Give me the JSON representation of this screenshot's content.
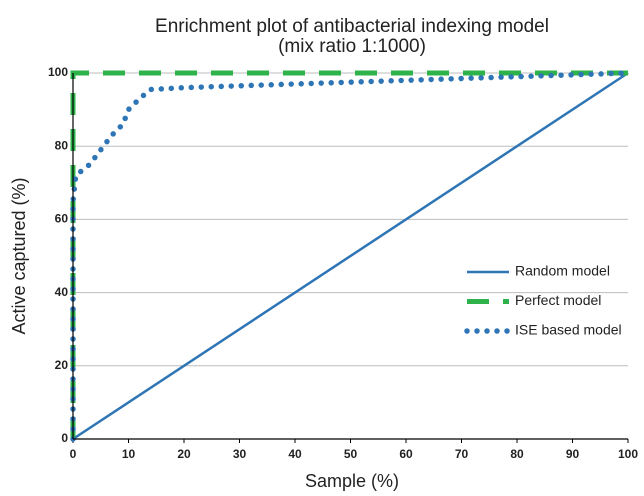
{
  "chart_data": {
    "type": "line",
    "title": [
      "Enrichment plot of antibacterial indexing model",
      "(mix ratio 1:1000)"
    ],
    "x_label": "Sample (%)",
    "y_label": "Active captured (%)",
    "xlim": [
      0,
      100
    ],
    "ylim": [
      0,
      100
    ],
    "xticks": [
      0,
      10,
      20,
      30,
      40,
      50,
      60,
      70,
      80,
      90,
      100
    ],
    "yticks": [
      0,
      20,
      40,
      60,
      80,
      100
    ],
    "grid": true,
    "legend": "right",
    "series": [
      {
        "name": "Random model",
        "color": "#2e75b6",
        "style": "solid",
        "x": [
          0,
          100
        ],
        "values": [
          0,
          100
        ]
      },
      {
        "name": "Perfect model",
        "color": "#2db34a",
        "style": "dashed",
        "x": [
          0,
          0,
          100
        ],
        "values": [
          0,
          100,
          100
        ]
      },
      {
        "name": "ISE based model",
        "color": "#2e75b6",
        "style": "dotted",
        "x": [
          0,
          0,
          0,
          0,
          0.5,
          3,
          5,
          7,
          9,
          10,
          12,
          14,
          20,
          30,
          40,
          50,
          60,
          70,
          80,
          90,
          100
        ],
        "values": [
          0,
          25,
          50,
          65,
          72,
          75,
          79,
          83,
          86,
          90,
          93,
          95.5,
          96,
          96.5,
          97,
          97.5,
          98,
          98.5,
          99,
          99.5,
          100
        ]
      }
    ]
  }
}
